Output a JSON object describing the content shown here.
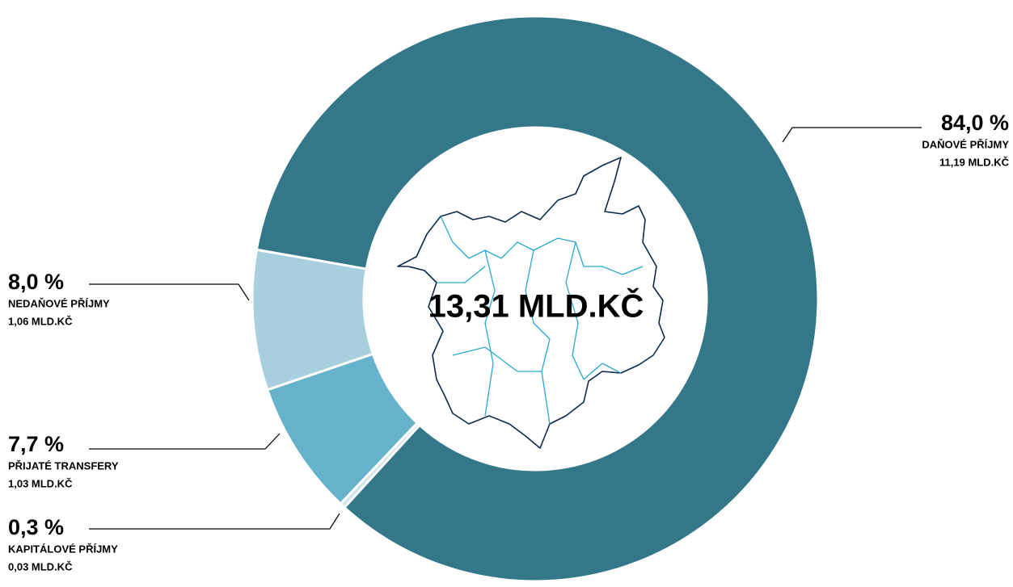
{
  "chart_data": {
    "type": "donut",
    "center_label": "13,31 MLD.KČ",
    "categories": [
      "DAŇOVÉ PŘÍJMY",
      "KAPITÁLOVÉ PŘÍJMY",
      "PŘIJATÉ TRANSFERY",
      "NEDAŇOVÉ PŘÍJMY"
    ],
    "values": [
      84.0,
      0.3,
      7.7,
      8.0
    ],
    "value_labels": [
      "84,0 %",
      "0,3 %",
      "7,7 %",
      "8,0 %"
    ],
    "amounts": [
      11.19,
      0.03,
      1.03,
      1.06
    ],
    "amount_labels": [
      "11,19 MLD.KČ",
      "0,03 MLD.KČ",
      "1,03 MLD.KČ",
      "1,06 MLD.KČ"
    ],
    "colors": [
      "#347789",
      "#cfe3ea",
      "#66b2cb",
      "#a8cfdd"
    ]
  }
}
